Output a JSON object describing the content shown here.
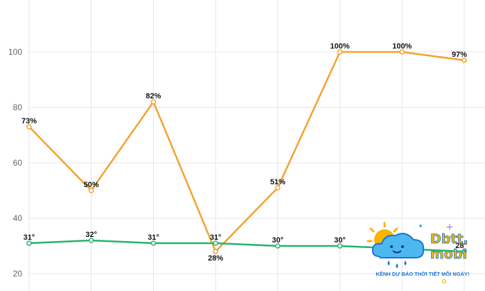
{
  "chart_data": {
    "type": "line",
    "categories": [
      "",
      "",
      "",
      "",
      "",
      "",
      "",
      ""
    ],
    "ylim": [
      20,
      115
    ],
    "yticks": [
      20,
      40,
      60,
      80,
      100
    ],
    "grid": true,
    "series": [
      {
        "color": "#f4a12e",
        "values": [
          73,
          50,
          82,
          28,
          51,
          100,
          100,
          97
        ],
        "labels": [
          "73%",
          "50%",
          "82%",
          "28%",
          "51%",
          "100%",
          "100%",
          "97%"
        ]
      },
      {
        "color": "#21b46b",
        "values": [
          31,
          32,
          31,
          31,
          30,
          30,
          29,
          28
        ],
        "labels": [
          "31°",
          "32°",
          "31°",
          "31°",
          "30°",
          "30°",
          "",
          "28°"
        ]
      }
    ]
  },
  "logo": {
    "name": "Dbtt.mobi",
    "tagline": "KÊNH DỰ BÁO THỜI TIẾT MỖI NGÀY!"
  }
}
